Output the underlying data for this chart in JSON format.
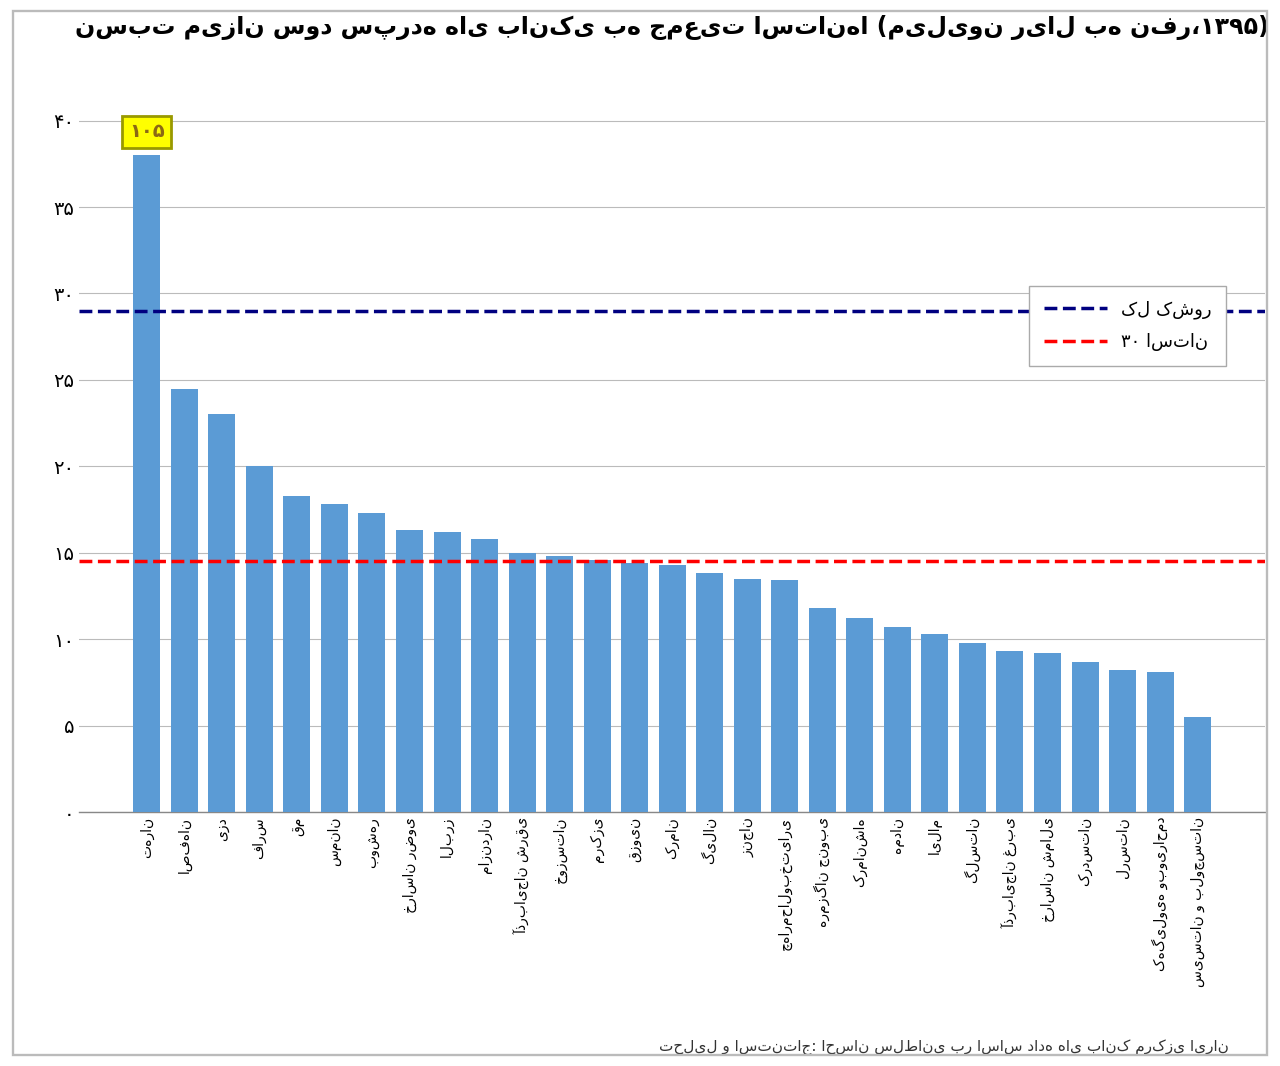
{
  "title": "نسبت میزان سود سپرده های بانکی به جمعیت استانها (میلیون ریال به نفر،۱۳۹۵)",
  "categories": [
    "تهران",
    "اصفهان",
    "یزد",
    "فارس",
    "قم",
    "سمنان",
    "بوشهر",
    "خراسان رضوی",
    "البرز",
    "مازندران",
    "آذربایجان شرقی",
    "خوزستان",
    "مرکزی",
    "قزوین",
    "کرمان",
    "گیلان",
    "زنجان",
    "چهارمحالوبختیاری",
    "هرمزگان جنوبی",
    "کرمانشاه",
    "همدان",
    "ایلام",
    "گلستان",
    "آذربایجان غربی",
    "خراسان شمالی",
    "کردستان",
    "لرستان",
    "کهگیلویه وبویراحمد",
    "سیستان و بلوچستان"
  ],
  "values": [
    38.0,
    24.5,
    23.0,
    20.0,
    18.3,
    17.8,
    17.3,
    16.3,
    16.2,
    15.8,
    15.0,
    14.8,
    14.6,
    14.4,
    14.3,
    13.8,
    13.5,
    13.4,
    11.8,
    11.2,
    10.7,
    10.3,
    9.8,
    9.3,
    9.2,
    8.7,
    8.2,
    8.1,
    5.5
  ],
  "bar_color": "#5B9BD5",
  "first_bar_label": "۱۰۵",
  "blue_line_y": 29.0,
  "red_line_y": 14.5,
  "blue_line_label": "کل کشور",
  "red_line_label": "۳۰ استان",
  "yticks": [
    0,
    5,
    10,
    15,
    20,
    25,
    30,
    35,
    40
  ],
  "ytick_labels": [
    "۰",
    "۵",
    "۱۰",
    "۱۵",
    "۲۰",
    "۲۵",
    "۳۰",
    "۳۵",
    "۴۰"
  ],
  "ylim": [
    0,
    43
  ],
  "source_text": "تحلیل و استنتاج: احسان سلطانی بر اساس داده های بانک مرکزی ایران",
  "background_color": "#FFFFFF",
  "grid_color": "#BBBBBB"
}
